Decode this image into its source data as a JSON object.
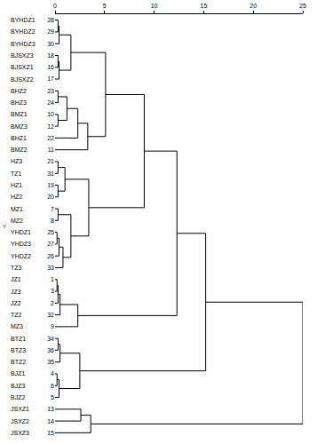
{
  "chart_data": {
    "type": "dendrogram",
    "ylabel": "Y",
    "xlim": [
      0,
      25
    ],
    "xticks": [
      0,
      5,
      10,
      15,
      20,
      25
    ],
    "grid": false,
    "color": "#000000",
    "leaves": [
      {
        "label": "BYHDZ1",
        "id": 28
      },
      {
        "label": "BYHDZ2",
        "id": 29
      },
      {
        "label": "BYHDZ3",
        "id": 30
      },
      {
        "label": "BJSXZ3",
        "id": 18
      },
      {
        "label": "BJSXZ1",
        "id": 16
      },
      {
        "label": "BJSXZ2",
        "id": 17
      },
      {
        "label": "BHZ2",
        "id": 23
      },
      {
        "label": "BHZ3",
        "id": 24
      },
      {
        "label": "BMZ1",
        "id": 10
      },
      {
        "label": "BMZ3",
        "id": 12
      },
      {
        "label": "BHZ1",
        "id": 22
      },
      {
        "label": "BMZ2",
        "id": 11
      },
      {
        "label": "HZ3",
        "id": 21
      },
      {
        "label": "TZ1",
        "id": 31
      },
      {
        "label": "HZ1",
        "id": 19
      },
      {
        "label": "HZ2",
        "id": 20
      },
      {
        "label": "MZ1",
        "id": 7
      },
      {
        "label": "MZ2",
        "id": 8
      },
      {
        "label": "YHDZ1",
        "id": 25
      },
      {
        "label": "YHDZ3",
        "id": 27
      },
      {
        "label": "YHDZ2",
        "id": 26
      },
      {
        "label": "TZ3",
        "id": 33
      },
      {
        "label": "JZ1",
        "id": 1
      },
      {
        "label": "JZ3",
        "id": 3
      },
      {
        "label": "JZ2",
        "id": 2
      },
      {
        "label": "TZ2",
        "id": 32
      },
      {
        "label": "MZ3",
        "id": 9
      },
      {
        "label": "BTZ1",
        "id": 34
      },
      {
        "label": "BTZ3",
        "id": 36
      },
      {
        "label": "BTZ2",
        "id": 35
      },
      {
        "label": "BJZ1",
        "id": 4
      },
      {
        "label": "BJZ3",
        "id": 6
      },
      {
        "label": "BJZ2",
        "id": 5
      },
      {
        "label": "JSXZ1",
        "id": 13
      },
      {
        "label": "JSXZ2",
        "id": 14
      },
      {
        "label": "JSXZ3",
        "id": 15
      }
    ],
    "merges": [
      {
        "a": "BYHDZ1",
        "b": "BYHDZ2",
        "distance": 0.3
      },
      {
        "a": 0,
        "b": "BYHDZ3",
        "distance": 0.4
      },
      {
        "a": "BJSXZ3",
        "b": "BJSXZ1",
        "distance": 0.3
      },
      {
        "a": 2,
        "b": "BJSXZ2",
        "distance": 0.4
      },
      {
        "a": 1,
        "b": 3,
        "distance": 1.6
      },
      {
        "a": "BHZ2",
        "b": "BHZ3",
        "distance": 0.3
      },
      {
        "a": "BMZ1",
        "b": "BMZ3",
        "distance": 0.3
      },
      {
        "a": 5,
        "b": 6,
        "distance": 1.2
      },
      {
        "a": 7,
        "b": "BHZ1",
        "distance": 2.3
      },
      {
        "a": 8,
        "b": "BMZ2",
        "distance": 3.3
      },
      {
        "a": 4,
        "b": 9,
        "distance": 5.1
      },
      {
        "a": "HZ3",
        "b": "TZ1",
        "distance": 0.3
      },
      {
        "a": "HZ1",
        "b": "HZ2",
        "distance": 0.3
      },
      {
        "a": 11,
        "b": 12,
        "distance": 1.0
      },
      {
        "a": "MZ1",
        "b": "MZ2",
        "distance": 0.3
      },
      {
        "a": "YHDZ1",
        "b": "YHDZ3",
        "distance": 0.2
      },
      {
        "a": 15,
        "b": "YHDZ2",
        "distance": 0.4
      },
      {
        "a": 16,
        "b": "TZ3",
        "distance": 0.8
      },
      {
        "a": 14,
        "b": 17,
        "distance": 1.6
      },
      {
        "a": 13,
        "b": 18,
        "distance": 3.4
      },
      {
        "a": 10,
        "b": 19,
        "distance": 9.0
      },
      {
        "a": "JZ1",
        "b": "JZ3",
        "distance": 0.2
      },
      {
        "a": 21,
        "b": "JZ2",
        "distance": 0.3
      },
      {
        "a": 22,
        "b": "TZ2",
        "distance": 0.5
      },
      {
        "a": 23,
        "b": "MZ3",
        "distance": 2.3
      },
      {
        "a": 20,
        "b": 24,
        "distance": 12.3
      },
      {
        "a": "BTZ1",
        "b": "BTZ3",
        "distance": 0.3
      },
      {
        "a": 26,
        "b": "BTZ2",
        "distance": 0.5
      },
      {
        "a": "BJZ1",
        "b": "BJZ3",
        "distance": 0.2
      },
      {
        "a": 28,
        "b": "BJZ2",
        "distance": 0.4
      },
      {
        "a": 27,
        "b": 29,
        "distance": 2.5
      },
      {
        "a": 25,
        "b": 30,
        "distance": 15.2
      },
      {
        "a": "JSXZ1",
        "b": "JSXZ2",
        "distance": 2.6
      },
      {
        "a": 32,
        "b": "JSXZ3",
        "distance": 3.6
      },
      {
        "a": 31,
        "b": 33,
        "distance": 25
      }
    ]
  }
}
